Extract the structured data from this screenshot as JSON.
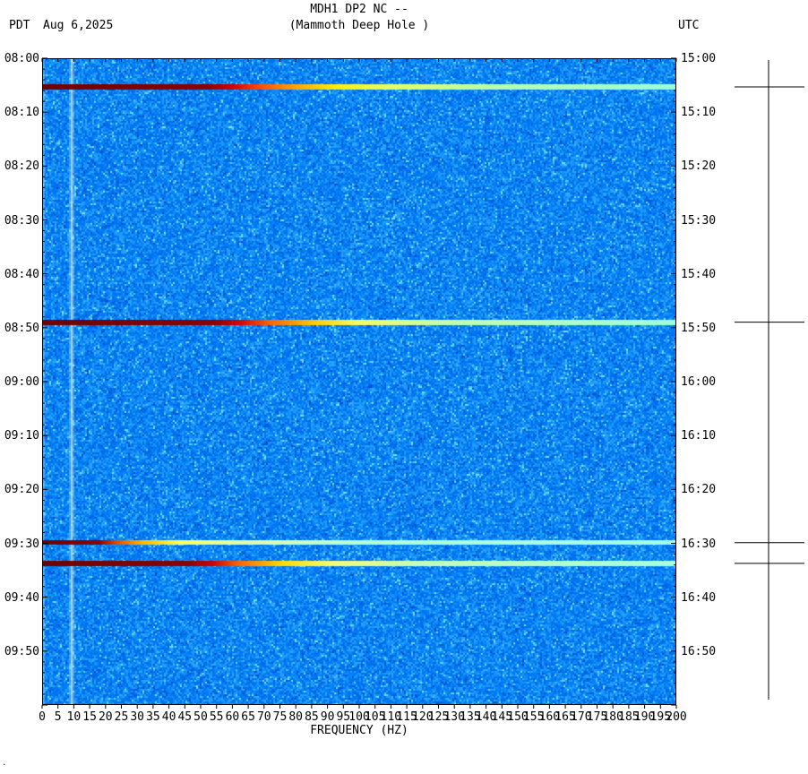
{
  "header": {
    "title_line1": "MDH1 DP2 NC --",
    "title_line2": "(Mammoth Deep Hole )",
    "tz_left": "PDT",
    "date": "Aug 6,2025",
    "tz_right": "UTC"
  },
  "corner_mark": ".",
  "chart_data": {
    "type": "heatmap",
    "title": "MDH1 DP2 NC -- (Mammoth Deep Hole )",
    "xlabel": "FREQUENCY (HZ)",
    "x_range_hz": [
      0,
      200
    ],
    "x_tick_step_hz": 5,
    "x_tick_labels": [
      "0",
      "5",
      "10",
      "15",
      "20",
      "25",
      "30",
      "35",
      "40",
      "45",
      "50",
      "55",
      "60",
      "65",
      "70",
      "75",
      "80",
      "85",
      "90",
      "95",
      "100",
      "105",
      "110",
      "115",
      "120",
      "125",
      "130",
      "135",
      "140",
      "145",
      "150",
      "155",
      "160",
      "165",
      "170",
      "175",
      "180",
      "185",
      "190",
      "195",
      "200"
    ],
    "time_axis_left_pdt": [
      "08:00",
      "08:10",
      "08:20",
      "08:30",
      "08:40",
      "08:50",
      "09:00",
      "09:10",
      "09:20",
      "09:30",
      "09:40",
      "09:50"
    ],
    "time_axis_right_utc": [
      "15:00",
      "15:10",
      "15:20",
      "15:30",
      "15:40",
      "15:50",
      "16:00",
      "16:10",
      "16:20",
      "16:30",
      "16:40",
      "16:50"
    ],
    "time_span_minutes": 120,
    "minor_tick_minutes": 2,
    "legend_position": "none",
    "grid": false,
    "background": {
      "base_colors": [
        "#0046c8",
        "#0082fa",
        "#78e6ff"
      ],
      "pale_stripe_hz": 9,
      "low_freq_bright_edge_hz": 1
    },
    "events": [
      {
        "time_pdt": "08:06",
        "time_utc": "15:06",
        "frac": 0.0443,
        "thickness": 6,
        "stops": [
          [
            0,
            "#6e0000"
          ],
          [
            0.26,
            "#8b0000"
          ],
          [
            0.3,
            "#d40000"
          ],
          [
            0.34,
            "#ff4400"
          ],
          [
            0.39,
            "#ff9900"
          ],
          [
            0.46,
            "#ffee00"
          ],
          [
            0.55,
            "#e4ff66"
          ],
          [
            0.72,
            "#b5ffb0"
          ],
          [
            1,
            "#9dffd8"
          ]
        ]
      },
      {
        "time_pdt": "08:50",
        "time_utc": "15:50",
        "frac": 0.408,
        "thickness": 6,
        "stops": [
          [
            0,
            "#6e0000"
          ],
          [
            0.27,
            "#8b0000"
          ],
          [
            0.31,
            "#d40000"
          ],
          [
            0.36,
            "#ff6600"
          ],
          [
            0.43,
            "#ffcc00"
          ],
          [
            0.5,
            "#f4ff66"
          ],
          [
            0.65,
            "#c0ffb0"
          ],
          [
            1,
            "#9dffd8"
          ]
        ]
      },
      {
        "time_pdt": "09:30",
        "time_utc": "16:30",
        "frac": 0.749,
        "thickness": 5,
        "stops": [
          [
            0,
            "#700000"
          ],
          [
            0.09,
            "#8b0000"
          ],
          [
            0.12,
            "#e05500"
          ],
          [
            0.16,
            "#ffbb00"
          ],
          [
            0.22,
            "#ffff66"
          ],
          [
            0.32,
            "#dcffaa"
          ],
          [
            0.5,
            "#b2ffd8"
          ],
          [
            1,
            "#a0ffe8"
          ]
        ]
      },
      {
        "time_pdt": "09:34",
        "time_utc": "16:34",
        "frac": 0.781,
        "thickness": 6,
        "stops": [
          [
            0,
            "#6e0000"
          ],
          [
            0.23,
            "#8b0000"
          ],
          [
            0.27,
            "#d40000"
          ],
          [
            0.31,
            "#ff6600"
          ],
          [
            0.38,
            "#ffdd00"
          ],
          [
            0.46,
            "#f0ff77"
          ],
          [
            0.6,
            "#c4ffbb"
          ],
          [
            1,
            "#a4ffe0"
          ]
        ]
      }
    ]
  }
}
